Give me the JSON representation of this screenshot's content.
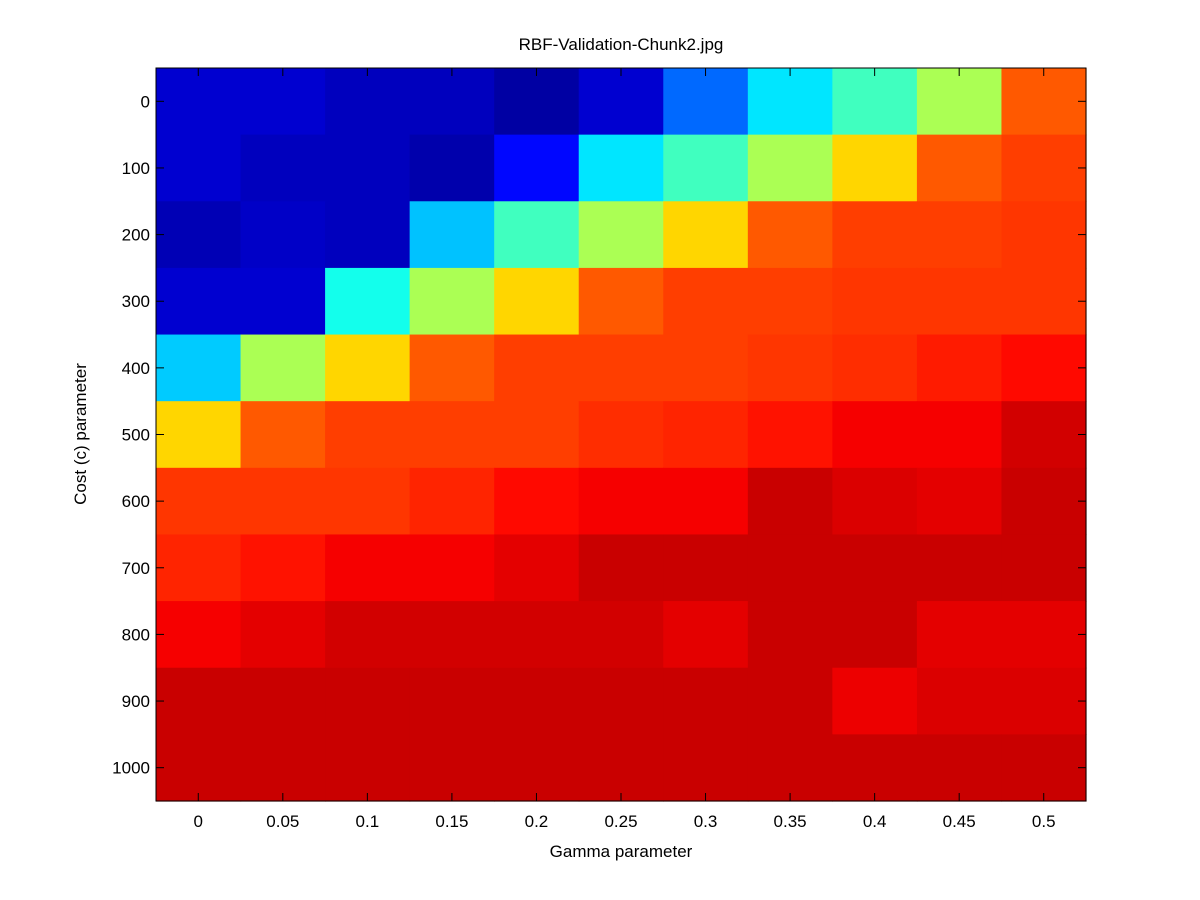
{
  "chart_data": {
    "type": "heatmap",
    "title": "RBF-Validation-Chunk2.jpg",
    "xlabel": "Gamma parameter",
    "ylabel": "Cost (c) parameter",
    "x": [
      "0",
      "0.05",
      "0.1",
      "0.15",
      "0.2",
      "0.25",
      "0.3",
      "0.35",
      "0.4",
      "0.45",
      "0.5"
    ],
    "y": [
      "0",
      "100",
      "200",
      "300",
      "400",
      "500",
      "600",
      "700",
      "800",
      "900",
      "1000"
    ],
    "xticks": [
      "0",
      "0.05",
      "0.1",
      "0.15",
      "0.2",
      "0.25",
      "0.3",
      "0.35",
      "0.4",
      "0.45",
      "0.5"
    ],
    "yticks": [
      "0",
      "100",
      "200",
      "300",
      "400",
      "500",
      "600",
      "700",
      "800",
      "900",
      "1000"
    ],
    "colormap": "jet",
    "color_range": [
      0,
      1
    ],
    "values": [
      [
        0.09,
        0.09,
        0.07,
        0.07,
        0.04,
        0.09,
        0.26,
        0.4,
        0.5,
        0.62,
        0.9
      ],
      [
        0.09,
        0.07,
        0.07,
        0.05,
        0.15,
        0.4,
        0.5,
        0.62,
        0.76,
        0.9,
        0.93
      ],
      [
        0.06,
        0.08,
        0.07,
        0.36,
        0.5,
        0.62,
        0.76,
        0.9,
        0.93,
        0.93,
        0.94
      ],
      [
        0.09,
        0.09,
        0.45,
        0.62,
        0.76,
        0.9,
        0.93,
        0.93,
        0.94,
        0.94,
        0.94
      ],
      [
        0.37,
        0.62,
        0.76,
        0.9,
        0.93,
        0.93,
        0.93,
        0.94,
        0.95,
        0.97,
        0.99
      ],
      [
        0.76,
        0.9,
        0.93,
        0.93,
        0.93,
        0.95,
        0.96,
        0.98,
        1.01,
        1.01,
        1.05
      ],
      [
        0.94,
        0.94,
        0.94,
        0.96,
        0.99,
        1.01,
        1.01,
        1.06,
        1.04,
        1.03,
        1.06
      ],
      [
        0.96,
        0.98,
        1.01,
        1.01,
        1.03,
        1.06,
        1.06,
        1.06,
        1.06,
        1.06,
        1.06
      ],
      [
        1.01,
        1.03,
        1.05,
        1.05,
        1.05,
        1.05,
        1.03,
        1.06,
        1.06,
        1.03,
        1.03
      ],
      [
        1.06,
        1.06,
        1.06,
        1.06,
        1.06,
        1.06,
        1.06,
        1.06,
        1.02,
        1.04,
        1.04
      ],
      [
        1.06,
        1.06,
        1.06,
        1.06,
        1.06,
        1.06,
        1.06,
        1.06,
        1.06,
        1.06,
        1.06
      ]
    ],
    "colorbar": false,
    "grid": false
  }
}
